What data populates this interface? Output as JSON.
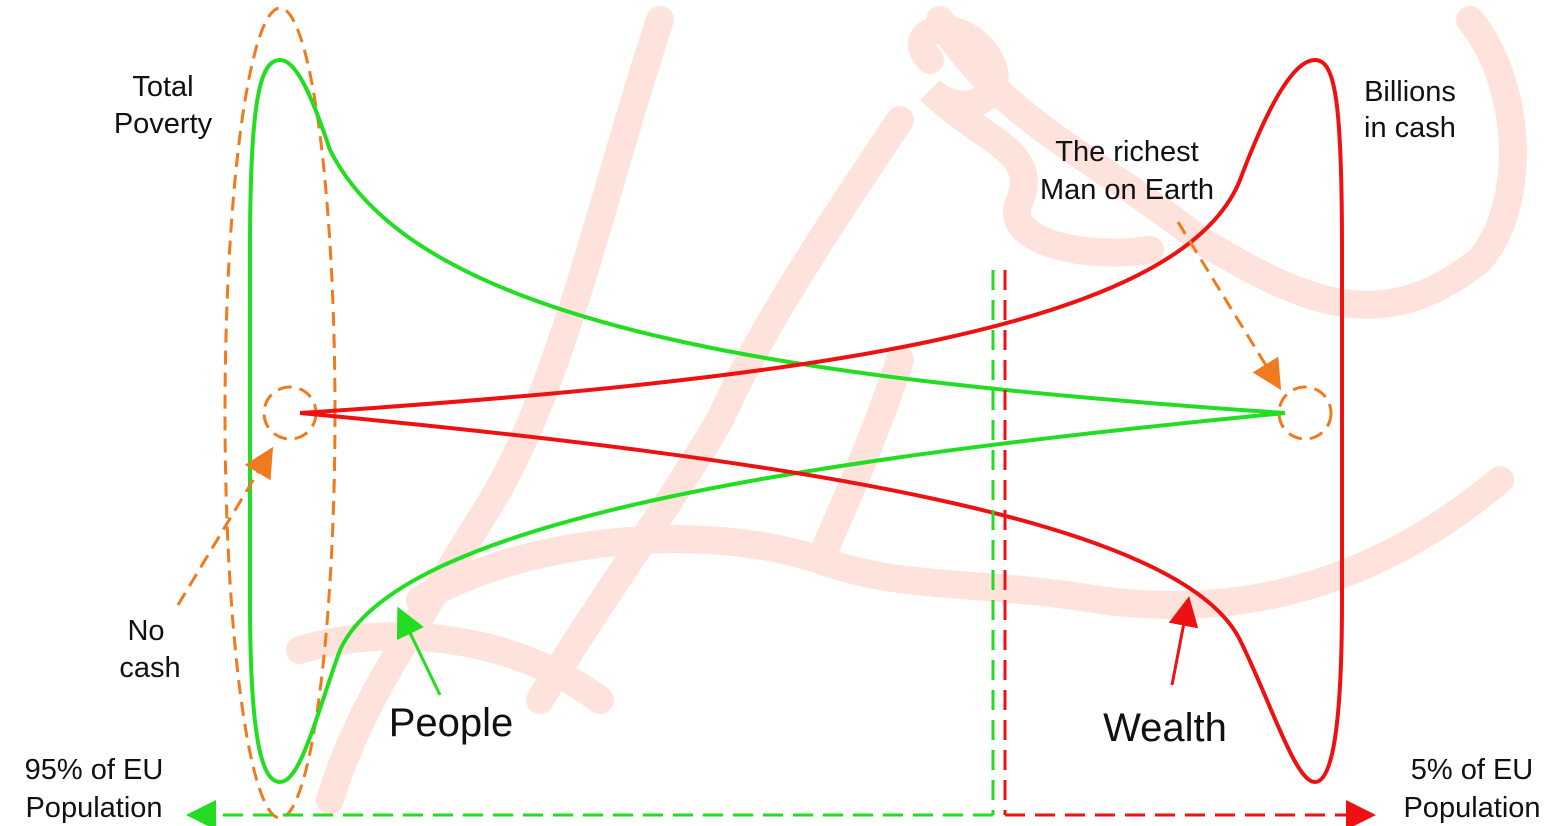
{
  "labels": {
    "total_poverty": [
      "Total",
      "Poverty"
    ],
    "billions_in_cash": [
      "Billions",
      "in cash"
    ],
    "richest_man": [
      "The richest",
      "Man on Earth"
    ],
    "no_cash": [
      "No",
      "cash"
    ],
    "people": "People",
    "wealth": "Wealth",
    "left_population": [
      "95% of EU",
      "Population"
    ],
    "right_population": [
      "5% of EU",
      "Population"
    ]
  }
}
